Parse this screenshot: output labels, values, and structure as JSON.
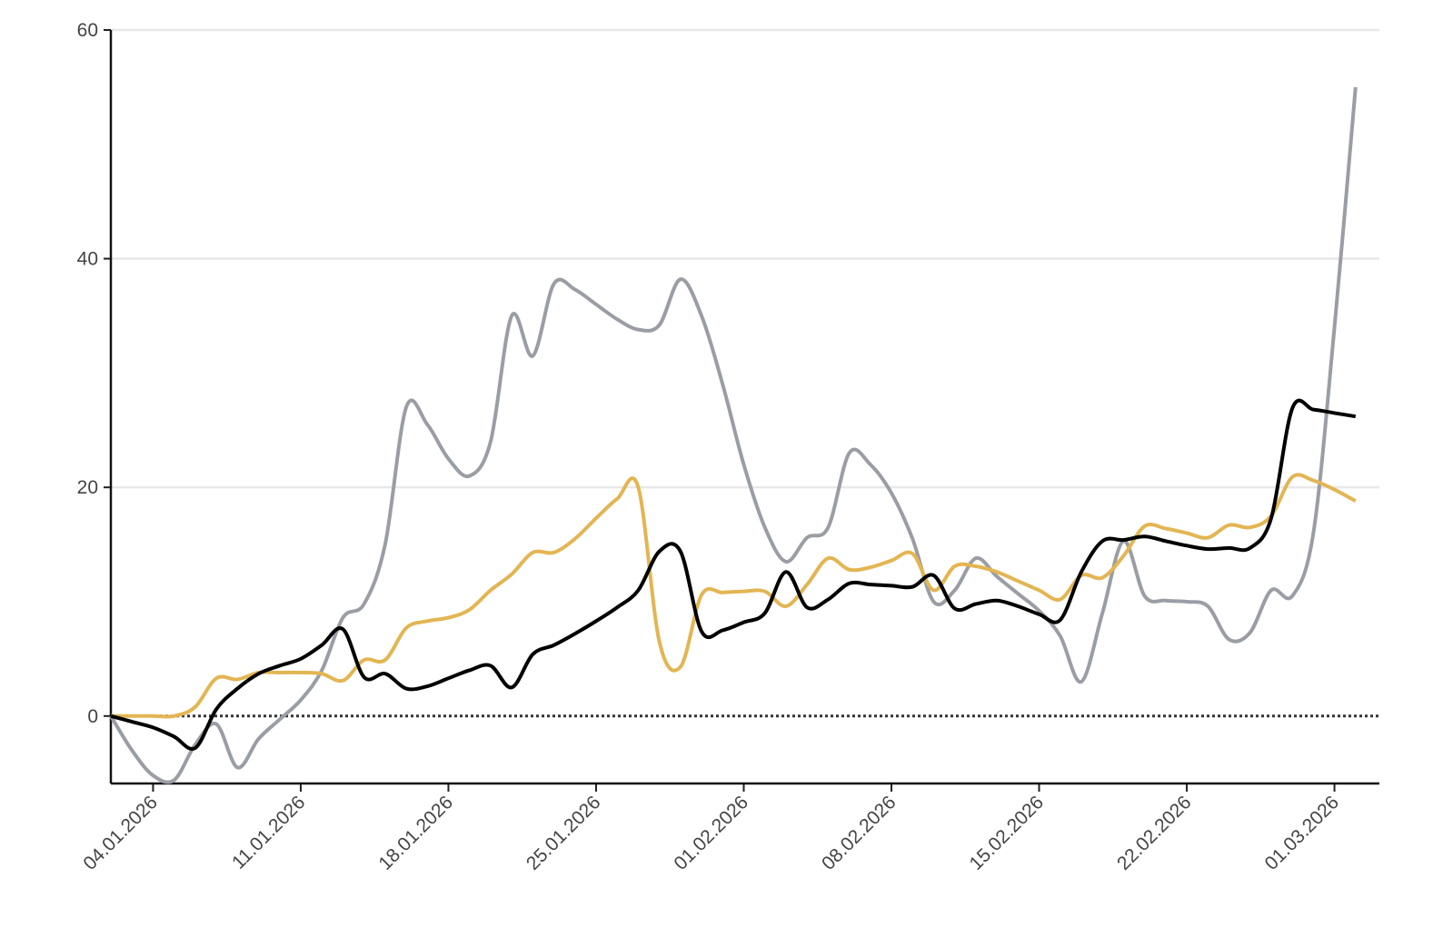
{
  "chart_data": {
    "type": "line",
    "x": [
      "2026-01-02",
      "2026-01-03",
      "2026-01-04",
      "2026-01-05",
      "2026-01-06",
      "2026-01-07",
      "2026-01-08",
      "2026-01-09",
      "2026-01-10",
      "2026-01-11",
      "2026-01-12",
      "2026-01-13",
      "2026-01-14",
      "2026-01-15",
      "2026-01-16",
      "2026-01-17",
      "2026-01-18",
      "2026-01-19",
      "2026-01-20",
      "2026-01-21",
      "2026-01-22",
      "2026-01-23",
      "2026-01-24",
      "2026-01-25",
      "2026-01-26",
      "2026-01-27",
      "2026-01-28",
      "2026-01-29",
      "2026-01-30",
      "2026-01-31",
      "2026-02-01",
      "2026-02-02",
      "2026-02-03",
      "2026-02-04",
      "2026-02-05",
      "2026-02-06",
      "2026-02-07",
      "2026-02-08",
      "2026-02-09",
      "2026-02-10",
      "2026-02-11",
      "2026-02-12",
      "2026-02-13",
      "2026-02-14",
      "2026-02-15",
      "2026-02-16",
      "2026-02-17",
      "2026-02-18",
      "2026-02-19",
      "2026-02-20",
      "2026-02-21",
      "2026-02-22",
      "2026-02-23",
      "2026-02-24",
      "2026-02-25",
      "2026-02-26",
      "2026-02-27",
      "2026-02-28",
      "2026-03-01",
      "2026-03-02"
    ],
    "series": [
      {
        "color": "#9a9ea4",
        "values": [
          0,
          -3,
          -5.2,
          -5.6,
          -2.5,
          -0.7,
          -4.5,
          -2,
          -0.3,
          1.4,
          4,
          8.6,
          9.8,
          15,
          27,
          25.5,
          22.5,
          21,
          24,
          35,
          31.5,
          37.8,
          37.3,
          36,
          34.7,
          33.8,
          34.2,
          38.2,
          35,
          29,
          22,
          16.5,
          13.5,
          15.6,
          16.5,
          23,
          22,
          19.5,
          15.5,
          10,
          11,
          13.8,
          12.2,
          10.7,
          9.2,
          7,
          3,
          9,
          15.3,
          10.5,
          10.1,
          10,
          9.6,
          6.7,
          7.3,
          11,
          10.5,
          16,
          34,
          55
        ]
      },
      {
        "color": "#e3b552",
        "values": [
          0,
          0,
          0,
          0,
          0.8,
          3.3,
          3.2,
          3.8,
          3.8,
          3.8,
          3.7,
          3.1,
          4.9,
          4.9,
          7.7,
          8.3,
          8.6,
          9.3,
          11,
          12.4,
          14.3,
          14.3,
          15.5,
          17.3,
          19,
          20,
          6.5,
          4.3,
          10.6,
          10.8,
          10.9,
          10.9,
          9.6,
          11.5,
          13.8,
          12.8,
          13,
          13.6,
          14.2,
          11,
          13.1,
          13.1,
          12.6,
          11.8,
          11,
          10.2,
          12.3,
          12.1,
          14,
          16.6,
          16.4,
          16,
          15.6,
          16.7,
          16.5,
          17.5,
          20.9,
          20.6,
          19.8,
          18.8
        ]
      },
      {
        "color": "#000000",
        "values": [
          0,
          -0.5,
          -1,
          -1.8,
          -2.8,
          0.6,
          2.4,
          3.7,
          4.4,
          5,
          6.2,
          7.6,
          3.4,
          3.7,
          2.4,
          2.6,
          3.3,
          4,
          4.4,
          2.5,
          5.4,
          6.2,
          7.2,
          8.3,
          9.5,
          11,
          14.4,
          14.4,
          7.4,
          7.5,
          8.2,
          9,
          12.6,
          9.5,
          10.2,
          11.6,
          11.5,
          11.4,
          11.3,
          12.3,
          9.4,
          9.8,
          10.1,
          9.6,
          8.9,
          8.4,
          12.6,
          15.3,
          15.4,
          15.7,
          15.3,
          14.9,
          14.6,
          14.7,
          14.7,
          17.3,
          26.9,
          26.8,
          26.5,
          26.2
        ]
      }
    ],
    "xlim": [
      "2026-01-02",
      "2026-03-03"
    ],
    "xticks": [
      {
        "value": "2026-01-04",
        "label": "04.01.2026"
      },
      {
        "value": "2026-01-11",
        "label": "11.01.2026"
      },
      {
        "value": "2026-01-18",
        "label": "18.01.2026"
      },
      {
        "value": "2026-01-25",
        "label": "25.01.2026"
      },
      {
        "value": "2026-02-01",
        "label": "01.02.2026"
      },
      {
        "value": "2026-02-08",
        "label": "08.02.2026"
      },
      {
        "value": "2026-02-15",
        "label": "15.02.2026"
      },
      {
        "value": "2026-02-22",
        "label": "22.02.2026"
      },
      {
        "value": "2026-03-01",
        "label": "01.03.2026"
      }
    ],
    "ylim": [
      -5.9,
      60
    ],
    "yticks": [
      0,
      20,
      40,
      60
    ],
    "grid": true
  }
}
